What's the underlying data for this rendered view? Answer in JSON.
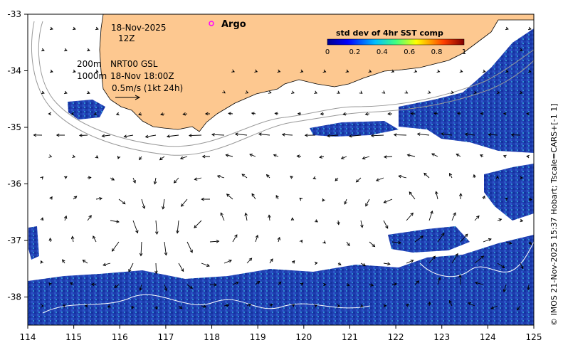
{
  "map": {
    "date": "18-Nov-2025",
    "hour": "12Z",
    "depth_200": "200m",
    "depth_1000": "1000m",
    "product": "NRT00 GSL",
    "timestamp": "18-Nov 18:00Z",
    "speed_scale": "0.5m/s (1kt 24h)",
    "argo_label": "Argo",
    "credit": "© IMOS 21-Nov-2025 15:37 Hobart; Tscale=CARS+[-1 1]",
    "colors": {
      "land": "#fdc890",
      "argo": "#ff00ff",
      "sst_patch": "#1f3fb0"
    }
  },
  "colorbar": {
    "title": "std dev of 4hr SST comp",
    "ticks": [
      "0",
      "0.2",
      "0.4",
      "0.6",
      "0.8",
      "1"
    ]
  },
  "axes": {
    "x_ticks": [
      "114",
      "115",
      "116",
      "117",
      "118",
      "119",
      "120",
      "121",
      "122",
      "123",
      "124",
      "125"
    ],
    "y_ticks": [
      "-33",
      "-34",
      "-35",
      "-36",
      "-37",
      "-38"
    ]
  }
}
